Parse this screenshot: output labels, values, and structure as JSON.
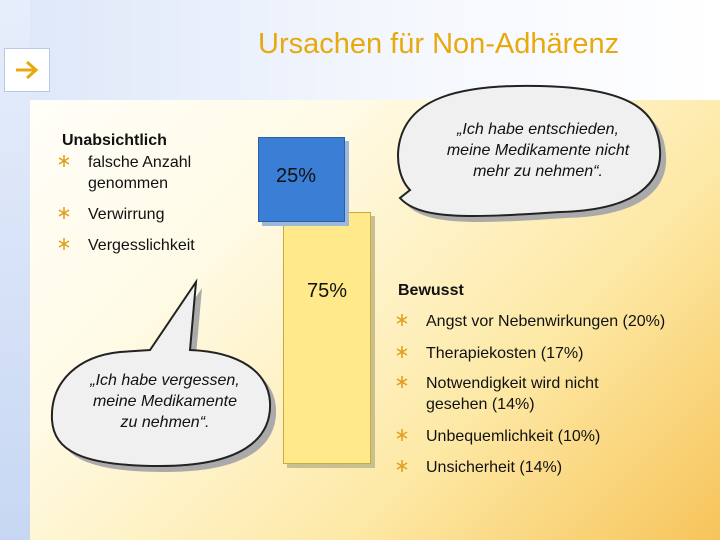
{
  "title": "Ursachen für Non-Adhärenz",
  "nav_icon": "arrow-right-icon",
  "colors": {
    "title": "#e8a90f",
    "bar_blue": "#3a7fd5",
    "bar_yellow": "#ffe98a",
    "bullet": "#e0a020"
  },
  "chart_data": {
    "type": "bar",
    "categories": [
      "Unabsichtlich",
      "Bewusst"
    ],
    "values": [
      75,
      25
    ],
    "value_labels": [
      "75%",
      "25%"
    ],
    "unit": "%"
  },
  "unintentional": {
    "heading": "Unabsichtlich",
    "items": [
      {
        "line1": "falsche Anzahl",
        "line2": "genommen"
      },
      {
        "line1": "Verwirrung"
      },
      {
        "line1": "Vergesslichkeit"
      }
    ]
  },
  "intentional": {
    "heading": "Bewusst",
    "items": [
      {
        "line1": "Angst vor Nebenwirkungen (20%)"
      },
      {
        "line1": "Therapiekosten (17%)"
      },
      {
        "line1": "Notwendigkeit wird nicht",
        "line2": "gesehen (14%)"
      },
      {
        "line1": "Unbequemlichkeit (10%)"
      },
      {
        "line1": "Unsicherheit (14%)"
      }
    ]
  },
  "quotes": {
    "intentional": [
      "„Ich habe entschieden,",
      "meine Medikamente nicht",
      "mehr zu nehmen“."
    ],
    "unintentional": [
      "„Ich habe vergessen,",
      "meine Medikamente",
      "zu nehmen“."
    ]
  }
}
